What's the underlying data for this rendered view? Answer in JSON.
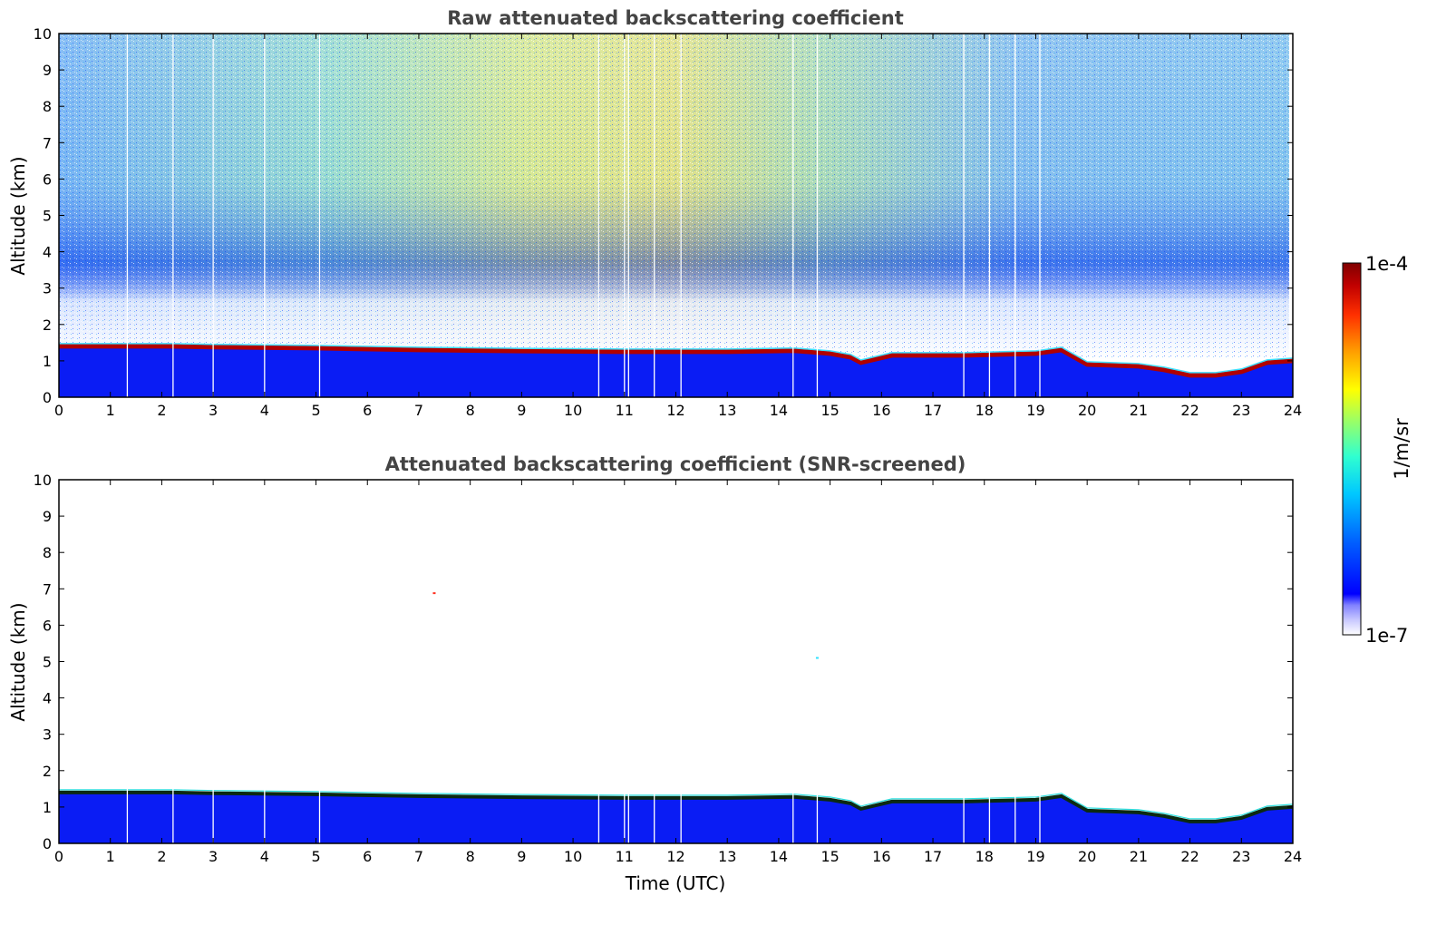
{
  "chart_data": [
    {
      "type": "heatmap",
      "title": "Raw attenuated backscattering coefficient",
      "xlabel": "",
      "ylabel": "Altitude (km)",
      "xlim": [
        0,
        24
      ],
      "ylim": [
        0,
        10
      ],
      "x_ticks": [
        "0",
        "1",
        "2",
        "3",
        "4",
        "5",
        "6",
        "7",
        "8",
        "9",
        "10",
        "11",
        "12",
        "13",
        "14",
        "15",
        "16",
        "17",
        "18",
        "19",
        "20",
        "21",
        "22",
        "23",
        "24"
      ],
      "y_ticks": [
        "0",
        "1",
        "2",
        "3",
        "4",
        "5",
        "6",
        "7",
        "8",
        "9",
        "10"
      ],
      "grid": false,
      "data_gaps_hours": [
        1.33,
        2.22,
        3.0,
        4.0,
        5.07,
        10.5,
        11.0,
        11.08,
        11.58,
        12.1,
        14.28,
        14.75,
        17.6,
        18.1,
        18.6,
        19.08
      ],
      "layer_top_km": {
        "time_hours": [
          0,
          2.2,
          3,
          5,
          7,
          9,
          11,
          13,
          14.3,
          15.0,
          15.4,
          15.6,
          16.2,
          17.6,
          19.0,
          19.5,
          20.0,
          21.0,
          21.5,
          22.0,
          22.5,
          23.0,
          23.5,
          24.0
        ],
        "altitude_km": [
          1.4,
          1.4,
          1.38,
          1.35,
          1.3,
          1.27,
          1.25,
          1.25,
          1.28,
          1.2,
          1.1,
          0.95,
          1.15,
          1.15,
          1.2,
          1.3,
          0.9,
          0.85,
          0.75,
          0.6,
          0.6,
          0.7,
          0.95,
          1.0
        ]
      }
    },
    {
      "type": "heatmap",
      "title": "Attenuated backscattering coefficient (SNR-screened)",
      "xlabel": "Time (UTC)",
      "ylabel": "Altitude (km)",
      "xlim": [
        0,
        24
      ],
      "ylim": [
        0,
        10
      ],
      "x_ticks": [
        "0",
        "1",
        "2",
        "3",
        "4",
        "5",
        "6",
        "7",
        "8",
        "9",
        "10",
        "11",
        "12",
        "13",
        "14",
        "15",
        "16",
        "17",
        "18",
        "19",
        "20",
        "21",
        "22",
        "23",
        "24"
      ],
      "y_ticks": [
        "0",
        "1",
        "2",
        "3",
        "4",
        "5",
        "6",
        "7",
        "8",
        "9",
        "10"
      ],
      "grid": false,
      "data_gaps_hours": [
        1.33,
        2.22,
        3.0,
        4.0,
        5.07,
        10.5,
        11.0,
        11.08,
        11.58,
        12.1,
        14.28,
        14.75,
        17.6,
        18.1,
        18.6,
        19.08
      ],
      "isolated_points": [
        {
          "time_hours": 7.3,
          "altitude_km": 6.88
        },
        {
          "time_hours": 14.75,
          "altitude_km": 5.1
        }
      ]
    }
  ],
  "colorbar": {
    "label": "1/m/sr",
    "max_label": "1e-4",
    "min_label": "1e-7",
    "colors": [
      "#ffffff",
      "#c8c8ff",
      "#8080ff",
      "#0000ff",
      "#0060ff",
      "#00c8ff",
      "#30ffd0",
      "#a0ff60",
      "#ffff00",
      "#ffa000",
      "#ff3000",
      "#c00000",
      "#800000"
    ]
  }
}
